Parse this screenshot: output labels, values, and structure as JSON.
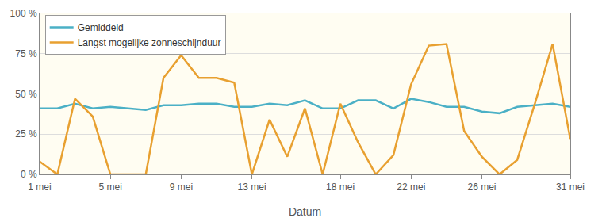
{
  "chart_data": {
    "type": "line",
    "x_label": "Datum",
    "categories": [
      "1 mei",
      null,
      null,
      null,
      "5 mei",
      null,
      null,
      null,
      "9 mei",
      null,
      null,
      null,
      "13 mei",
      null,
      null,
      null,
      null,
      "18 mei",
      null,
      null,
      null,
      "22 mei",
      null,
      null,
      null,
      "26 mei",
      null,
      null,
      null,
      null,
      "31 mei"
    ],
    "series": [
      {
        "name": "Gemiddeld",
        "color": "#4bb0c6",
        "values": [
          41,
          41,
          44,
          41,
          42,
          41,
          40,
          43,
          43,
          44,
          44,
          42,
          42,
          44,
          43,
          46,
          41,
          41,
          46,
          46,
          41,
          47,
          45,
          42,
          42,
          39,
          38,
          42,
          43,
          44,
          42
        ]
      },
      {
        "name": "Langst mogelijke zonneschijnduur",
        "color": "#e8a030",
        "values": [
          8,
          0,
          47,
          36,
          0,
          0,
          0,
          60,
          74,
          60,
          60,
          57,
          0,
          34,
          11,
          41,
          0,
          44,
          20,
          0,
          12,
          56,
          80,
          81,
          27,
          11,
          0,
          9,
          44,
          81,
          22
        ]
      }
    ],
    "ylim": [
      0,
      100
    ],
    "yticks": [
      {
        "value": 0,
        "label": "0 %"
      },
      {
        "value": 25,
        "label": "25 %"
      },
      {
        "value": 50,
        "label": "50 %"
      },
      {
        "value": 75,
        "label": "75 %"
      },
      {
        "value": 100,
        "label": "100 %"
      }
    ],
    "grid": true,
    "legend": "upper left"
  }
}
